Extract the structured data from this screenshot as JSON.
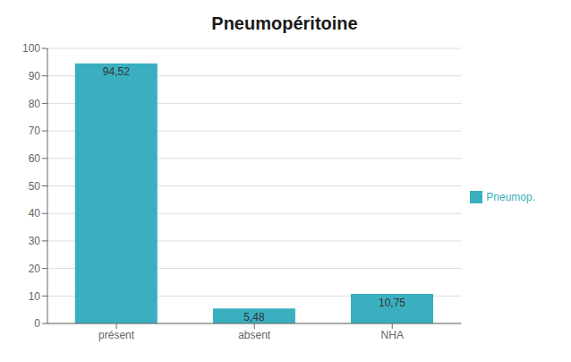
{
  "chart_data": {
    "type": "bar",
    "title": "Pneumopéritoine",
    "categories": [
      "présent",
      "absent",
      "NHA"
    ],
    "series": [
      {
        "name": "Pneumop.",
        "color": "#3AAFC0",
        "values": [
          94.52,
          5.48,
          10.75
        ],
        "value_labels": [
          "94,52",
          "5,48",
          "10,75"
        ]
      }
    ],
    "ylim": [
      0,
      100
    ],
    "yticks": [
      0,
      10,
      20,
      30,
      40,
      50,
      60,
      70,
      80,
      90,
      100
    ],
    "grid": true,
    "legend": "right"
  }
}
